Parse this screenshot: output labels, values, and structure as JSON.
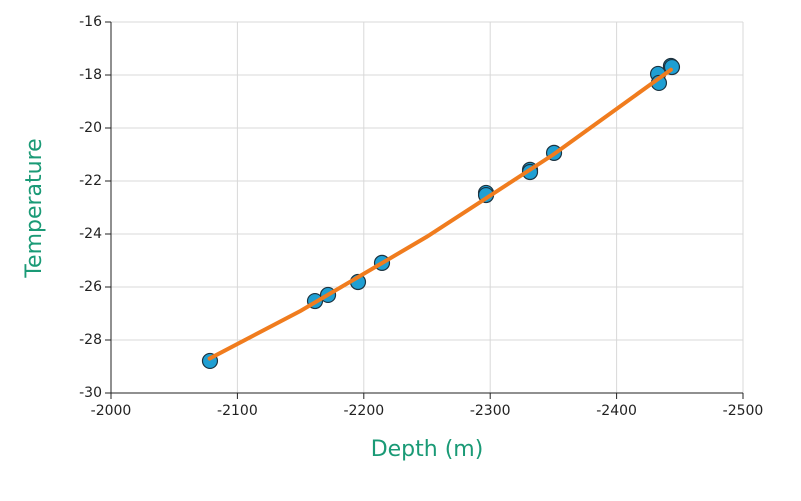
{
  "chart_data": {
    "type": "scatter",
    "xlabel": "Depth (m)",
    "ylabel": "Temperature",
    "xlim": [
      -2000,
      -2500
    ],
    "xticks": [
      -2000,
      -2100,
      -2200,
      -2300,
      -2400,
      -2500
    ],
    "ylim": [
      -30,
      -16
    ],
    "yticks": [
      -30,
      -28,
      -26,
      -24,
      -22,
      -20,
      -18,
      -16
    ],
    "grid": true,
    "series": [
      {
        "type": "scatter",
        "color": "#1f9fd3",
        "x": [
          -2078.3,
          -2161.4,
          -2171.7,
          -2195.4,
          -2214.4,
          -2296.7,
          -2296.7,
          -2331.5,
          -2331.5,
          -2350.5,
          -2432.8,
          -2433.5,
          -2443.0,
          -2443.8
        ],
        "values": [
          -28.79,
          -26.53,
          -26.3,
          -25.81,
          -25.09,
          -22.45,
          -22.53,
          -21.58,
          -21.66,
          -20.94,
          -17.96,
          -18.3,
          -17.66,
          -17.7
        ]
      },
      {
        "type": "line",
        "color": "#f07c1e",
        "x": [
          -2078,
          -2150,
          -2250,
          -2350,
          -2443
        ],
        "values": [
          -28.7,
          -26.9,
          -24.1,
          -21.0,
          -17.8
        ]
      }
    ]
  }
}
